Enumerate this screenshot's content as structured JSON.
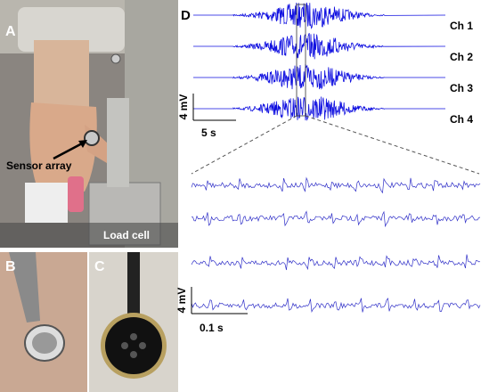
{
  "panels": {
    "a": {
      "label": "A",
      "annotations": [
        "Sensor array",
        "Load cell"
      ]
    },
    "b": {
      "label": "B"
    },
    "c": {
      "label": "C"
    },
    "d": {
      "label": "D",
      "channels": [
        "Ch 1",
        "Ch 2",
        "Ch 3",
        "Ch 4"
      ],
      "overview_scale": {
        "amplitude": "4 mV",
        "time": "5 s"
      },
      "zoom_scale": {
        "amplitude": "4 mV",
        "time": "0.1 s"
      }
    }
  }
}
